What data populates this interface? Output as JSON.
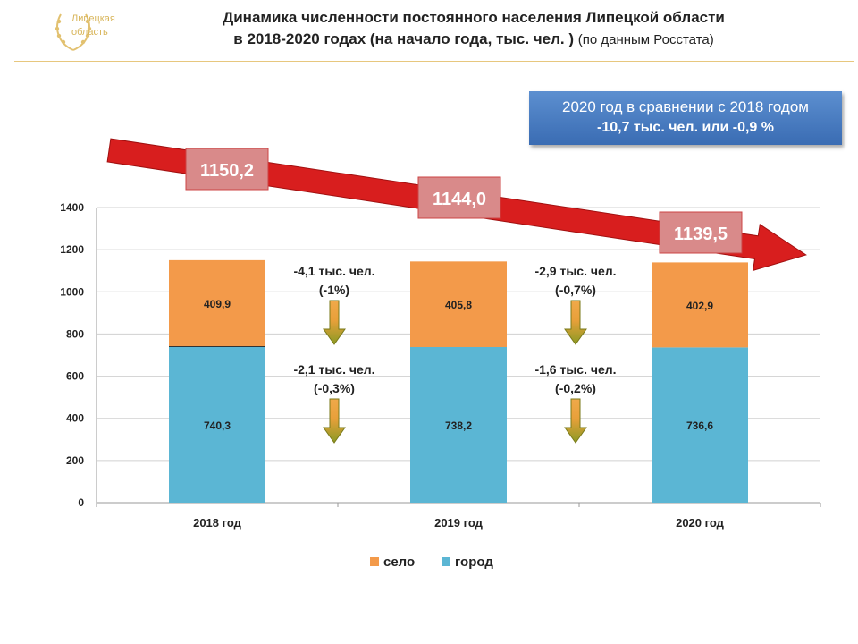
{
  "header": {
    "logo_text_line1": "Липецкая",
    "logo_text_line2": "область",
    "title_line1": "Динамика численности постоянного населения Липецкой области",
    "title_line2_bold": "в 2018-2020 годах (на начало года, тыс. чел. )",
    "title_line2_normal": "(по данным Росстата)"
  },
  "comparison": {
    "line1": "2020 год в сравнении с 2018 годом",
    "line2": "-10,7 тыс. чел. или -0,9 %"
  },
  "colors": {
    "selo": "#f39a4a",
    "gorod": "#5bb6d4",
    "trend_arrow": "#d81e1e",
    "total_box": "#d98a8a",
    "change_arrow": "#b28a1e"
  },
  "chart_data": {
    "type": "bar",
    "stacked": true,
    "categories": [
      "2018 год",
      "2019 год",
      "2020 год"
    ],
    "series": [
      {
        "name": "город",
        "values": [
          740.3,
          738.2,
          736.6
        ],
        "labels": [
          "740,3",
          "738,2",
          "736,6"
        ]
      },
      {
        "name": "село",
        "values": [
          409.9,
          405.8,
          402.9
        ],
        "labels": [
          "409,9",
          "405,8",
          "402,9"
        ]
      }
    ],
    "totals": [
      "1150,2",
      "1144,0",
      "1139,5"
    ],
    "yticks": [
      "0",
      "200",
      "400",
      "600",
      "800",
      "1000",
      "1200",
      "1400"
    ],
    "ylim": [
      0,
      1400
    ],
    "grid": true,
    "legend": [
      "село",
      "город"
    ],
    "legend_position": "bottom",
    "changes": [
      {
        "selo_line1": "-4,1 тыс. чел.",
        "selo_line2": "(-1%)",
        "gorod_line1": "-2,1 тыс. чел.",
        "gorod_line2": "(-0,3%)"
      },
      {
        "selo_line1": "-2,9 тыс. чел.",
        "selo_line2": "(-0,7%)",
        "gorod_line1": "-1,6 тыс. чел.",
        "gorod_line2": "(-0,2%)"
      }
    ]
  }
}
